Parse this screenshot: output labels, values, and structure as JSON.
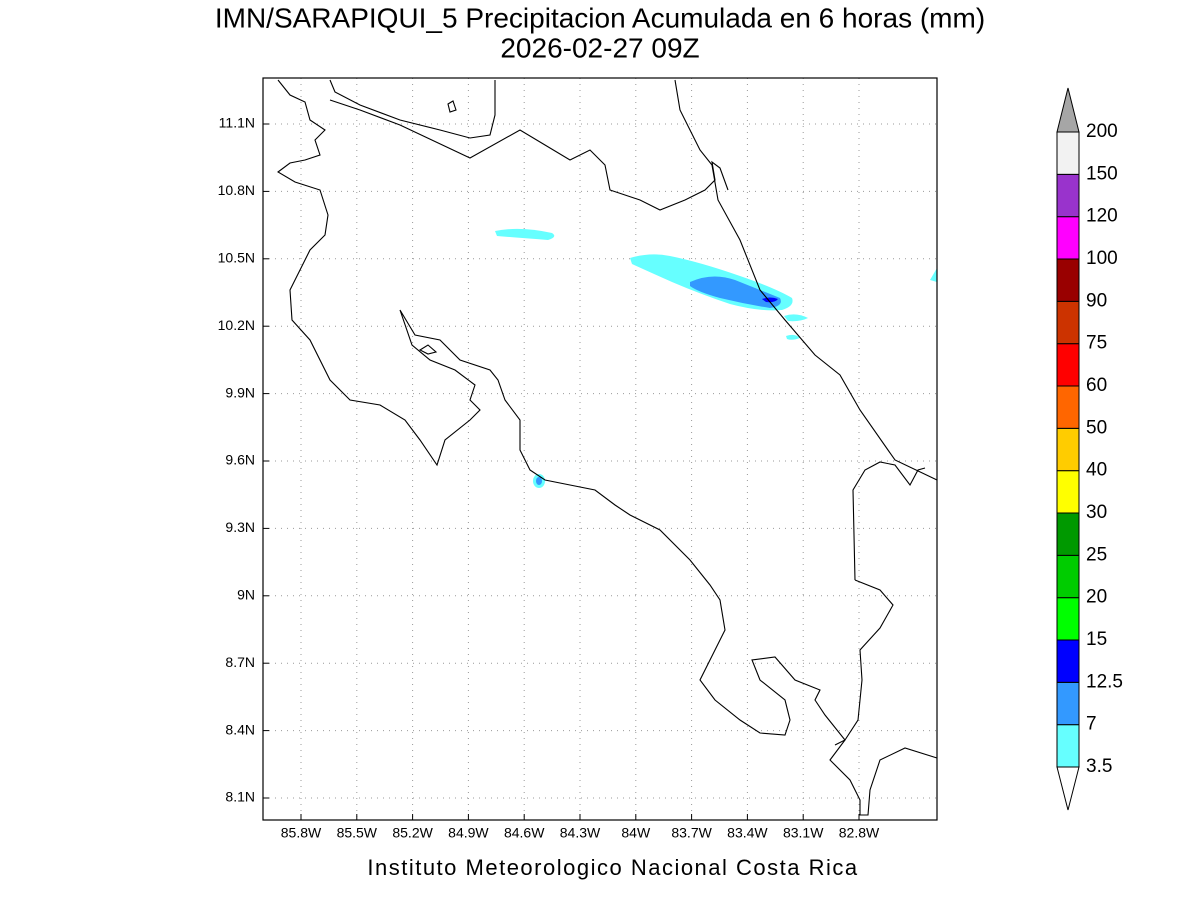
{
  "title": "IMN/SARAPIQUI_5 Precipitacion Acumulada en 6 horas (mm)",
  "subtitle": "2026-02-27 09Z",
  "lat_labels": [
    "11.1N",
    "10.8N",
    "10.5N",
    "10.2N",
    "9.9N",
    "9.6N",
    "9.3N",
    "9N",
    "8.7N",
    "8.4N",
    "8.1N"
  ],
  "lon_labels": [
    "85.8W",
    "85.5W",
    "85.2W",
    "84.9W",
    "84.6W",
    "84.3W",
    "84W",
    "83.7W",
    "83.4W",
    "83.1W",
    "82.8W"
  ],
  "colorbar": {
    "levels": [
      "3.5",
      "7",
      "12.5",
      "15",
      "20",
      "25",
      "30",
      "40",
      "50",
      "60",
      "75",
      "90",
      "100",
      "120",
      "150",
      "200"
    ],
    "colors": [
      "#66ffff",
      "#3399ff",
      "#0000ff",
      "#00ff00",
      "#00cc00",
      "#009900",
      "#ffff00",
      "#ffcc00",
      "#ff6600",
      "#ff0000",
      "#cc3300",
      "#990000",
      "#ff00ff",
      "#9933cc",
      "#f2f2f2"
    ],
    "over_color": "#a6a6a6",
    "under_color": "#ffffff"
  },
  "footer": "Instituto Meteorologico Nacional Costa Rica"
}
